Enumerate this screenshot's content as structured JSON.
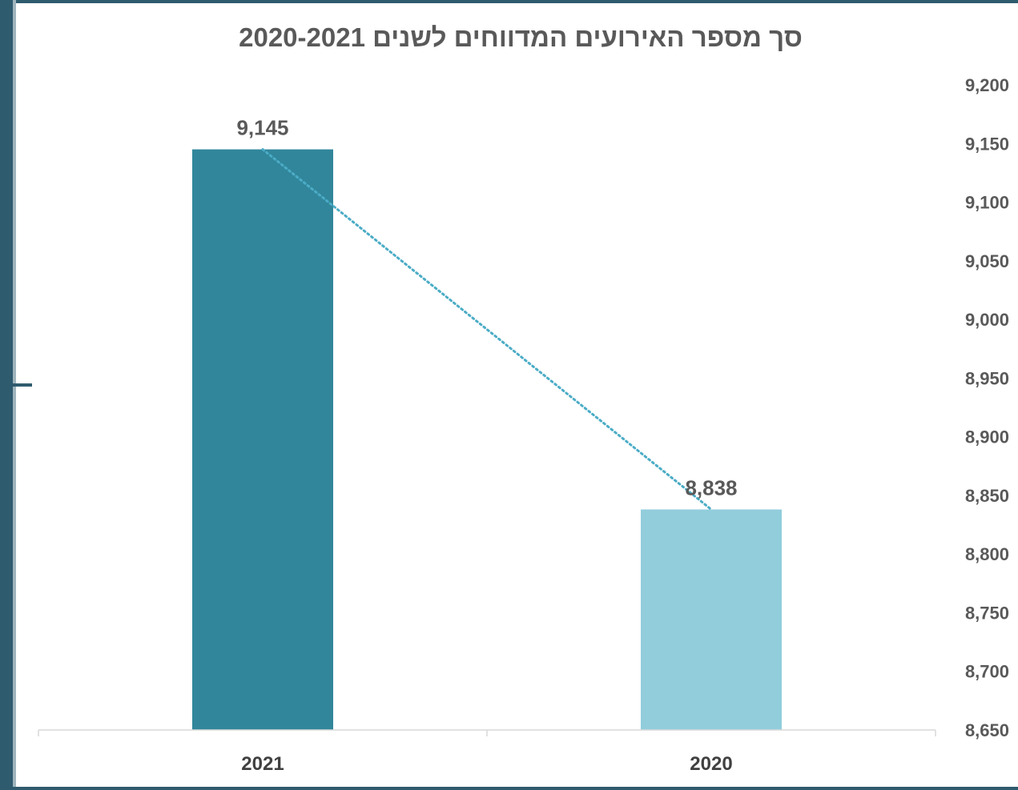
{
  "chart_data": {
    "type": "bar",
    "title": "סך מספר האירועים המדווחים לשנים 2020-2021",
    "categories": [
      "2021",
      "2020"
    ],
    "values": [
      9145,
      8838
    ],
    "value_labels": [
      "9,145",
      "8,838"
    ],
    "colors": [
      "#31869b",
      "#92cddc"
    ],
    "trendline": {
      "style": "dotted",
      "color": "#4bacc6"
    },
    "y_axis": {
      "position": "right",
      "ylim": [
        8650,
        9200
      ],
      "tick_step": 50,
      "ticks": [
        "8,650",
        "8,700",
        "8,750",
        "8,800",
        "8,850",
        "8,900",
        "8,950",
        "9,000",
        "9,050",
        "9,100",
        "9,150",
        "9,200"
      ]
    },
    "grid": false,
    "legend": "none"
  }
}
